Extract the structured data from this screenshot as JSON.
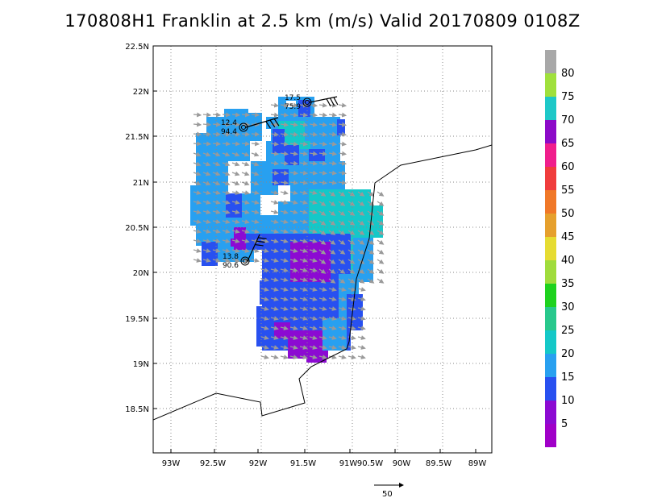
{
  "title": "170808H1 Franklin at 2.5 km (m/s) Valid 20170809 0108Z",
  "map": {
    "lon_range": [
      -93.3,
      -88.8
    ],
    "lat_range": [
      18.0,
      22.5
    ],
    "lat_ticks": [
      "22.5N",
      "22N",
      "21.5N",
      "21N",
      "20.5N",
      "20N",
      "19.5N",
      "19N",
      "18.5N"
    ],
    "lon_ticks": [
      "93W",
      "92.5W",
      "92W",
      "91.5W",
      "91W",
      "90.5W",
      "90W",
      "89.5W",
      "89W"
    ],
    "grid": true
  },
  "colorbar": {
    "labels": [
      "80",
      "75",
      "70",
      "65",
      "60",
      "55",
      "50",
      "45",
      "40",
      "35",
      "30",
      "25",
      "20",
      "15",
      "10",
      "5"
    ],
    "colors": [
      "#a8a8a8",
      "#a0e03c",
      "#1ec8c8",
      "#8c0ac8",
      "#f01e8c",
      "#f03c3c",
      "#f07828",
      "#e6a02d",
      "#e6dc32",
      "#a0dc3c",
      "#1ed21e",
      "#28c88c",
      "#14c8c8",
      "#28a0f0",
      "#2850f0",
      "#8c0ad2",
      "#a000c8"
    ]
  },
  "observations": [
    {
      "wind": "17.5",
      "pressure": "75.9"
    },
    {
      "wind": "12.4",
      "pressure": "94.4"
    },
    {
      "wind": "13.8",
      "pressure": "90.6"
    }
  ],
  "reference_vector": {
    "label": "50"
  }
}
